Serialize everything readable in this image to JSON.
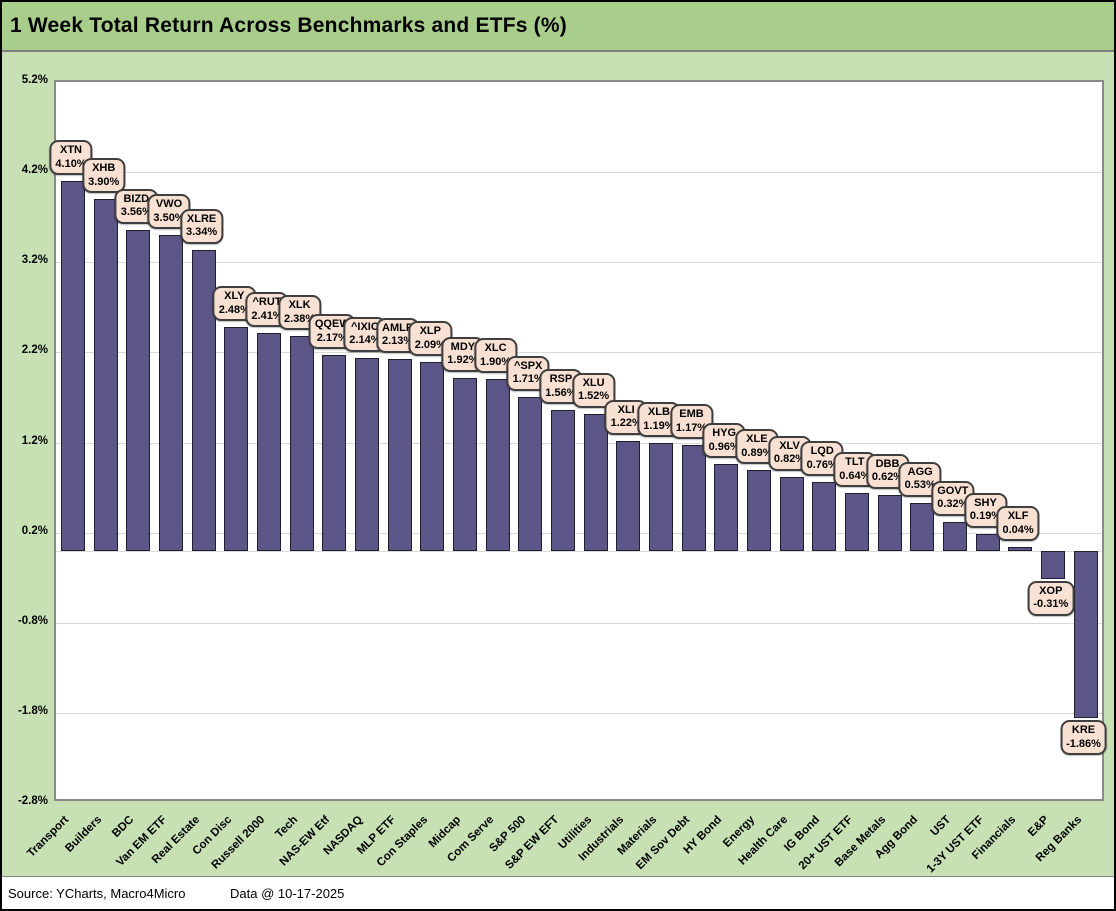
{
  "title": "1 Week Total Return Across Benchmarks and ETFs (%)",
  "footer": {
    "source": "Source: YCharts, Macro4Micro",
    "data_date": "Data @ 10-17-2025"
  },
  "colors": {
    "title_bg": "#A9CE8C",
    "page_bg": "#C7E1B5",
    "bar": "#5D5689",
    "bar_border": "#211c2e",
    "callout_bg": "#F8E1D3",
    "callout_border": "#3F3F3F",
    "gridline": "#D9D9D9",
    "plot_border": "#8A8A8A"
  },
  "chart_data": {
    "type": "bar",
    "title": "1 Week Total Return Across Benchmarks and ETFs (%)",
    "xlabel": "",
    "ylabel": "",
    "ylim": [
      -2.8,
      5.2
    ],
    "grid": true,
    "legend": "none",
    "yticks": [
      {
        "value": 5.2,
        "label": "5.2%"
      },
      {
        "value": 4.2,
        "label": "4.2%"
      },
      {
        "value": 3.2,
        "label": "3.2%"
      },
      {
        "value": 2.2,
        "label": "2.2%"
      },
      {
        "value": 1.2,
        "label": "1.2%"
      },
      {
        "value": 0.2,
        "label": "0.2%"
      },
      {
        "value": -0.8,
        "label": "-0.8%"
      },
      {
        "value": -1.8,
        "label": "-1.8%"
      },
      {
        "value": -2.8,
        "label": "-2.8%"
      }
    ],
    "points": [
      {
        "category": "Transport",
        "ticker": "XTN",
        "value": 4.1,
        "label": "4.10%"
      },
      {
        "category": "Builders",
        "ticker": "XHB",
        "value": 3.9,
        "label": "3.90%"
      },
      {
        "category": "BDC",
        "ticker": "BIZD",
        "value": 3.56,
        "label": "3.56%"
      },
      {
        "category": "Van EM ETF",
        "ticker": "VWO",
        "value": 3.5,
        "label": "3.50%"
      },
      {
        "category": "Real Estate",
        "ticker": "XLRE",
        "value": 3.34,
        "label": "3.34%"
      },
      {
        "category": "Con Disc",
        "ticker": "XLY",
        "value": 2.48,
        "label": "2.48%"
      },
      {
        "category": "Russell 2000",
        "ticker": "^RUT",
        "value": 2.41,
        "label": "2.41%"
      },
      {
        "category": "Tech",
        "ticker": "XLK",
        "value": 2.38,
        "label": "2.38%"
      },
      {
        "category": "NAS-EW Etf",
        "ticker": "QQEW",
        "value": 2.17,
        "label": "2.17%"
      },
      {
        "category": "NASDAQ",
        "ticker": "^IXIC",
        "value": 2.14,
        "label": "2.14%"
      },
      {
        "category": "MLP ETF",
        "ticker": "AMLP",
        "value": 2.13,
        "label": "2.13%"
      },
      {
        "category": "Con Staples",
        "ticker": "XLP",
        "value": 2.09,
        "label": "2.09%"
      },
      {
        "category": "Midcap",
        "ticker": "MDY",
        "value": 1.92,
        "label": "1.92%"
      },
      {
        "category": "Com Serve",
        "ticker": "XLC",
        "value": 1.9,
        "label": "1.90%"
      },
      {
        "category": "S&P 500",
        "ticker": "^SPX",
        "value": 1.71,
        "label": "1.71%"
      },
      {
        "category": "S&P EW EFT",
        "ticker": "RSP",
        "value": 1.56,
        "label": "1.56%"
      },
      {
        "category": "Utilities",
        "ticker": "XLU",
        "value": 1.52,
        "label": "1.52%"
      },
      {
        "category": "Industrials",
        "ticker": "XLI",
        "value": 1.22,
        "label": "1.22%"
      },
      {
        "category": "Materials",
        "ticker": "XLB",
        "value": 1.19,
        "label": "1.19%"
      },
      {
        "category": "EM Sov Debt",
        "ticker": "EMB",
        "value": 1.17,
        "label": "1.17%"
      },
      {
        "category": "HY Bond",
        "ticker": "HYG",
        "value": 0.96,
        "label": "0.96%"
      },
      {
        "category": "Energy",
        "ticker": "XLE",
        "value": 0.89,
        "label": "0.89%"
      },
      {
        "category": "Health Care",
        "ticker": "XLV",
        "value": 0.82,
        "label": "0.82%"
      },
      {
        "category": "IG Bond",
        "ticker": "LQD",
        "value": 0.76,
        "label": "0.76%"
      },
      {
        "category": "20+ UST ETF",
        "ticker": "TLT",
        "value": 0.64,
        "label": "0.64%"
      },
      {
        "category": "Base Metals",
        "ticker": "DBB",
        "value": 0.62,
        "label": "0.62%"
      },
      {
        "category": "Agg Bond",
        "ticker": "AGG",
        "value": 0.53,
        "label": "0.53%"
      },
      {
        "category": "UST",
        "ticker": "GOVT",
        "value": 0.32,
        "label": "0.32%"
      },
      {
        "category": "1-3Y UST ETF",
        "ticker": "SHY",
        "value": 0.19,
        "label": "0.19%"
      },
      {
        "category": "Financials",
        "ticker": "XLF",
        "value": 0.04,
        "label": "0.04%"
      },
      {
        "category": "E&P",
        "ticker": "XOP",
        "value": -0.31,
        "label": "-0.31%"
      },
      {
        "category": "Reg Banks",
        "ticker": "KRE",
        "value": -1.86,
        "label": "-1.86%"
      }
    ]
  }
}
